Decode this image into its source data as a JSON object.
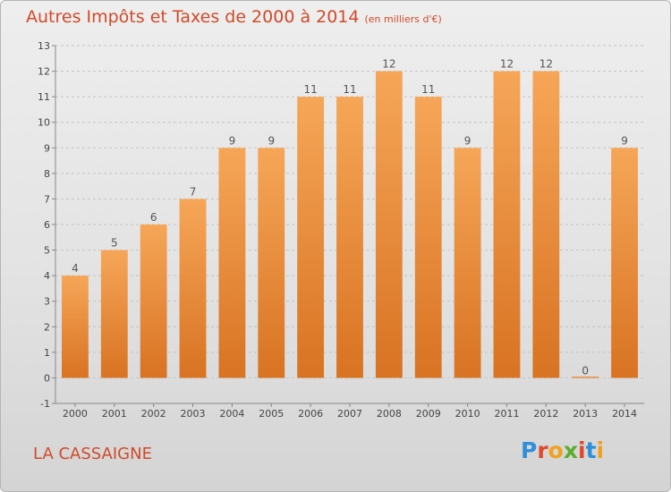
{
  "header": {
    "title": "Autres Impôts et Taxes de 2000 à 2014",
    "unit": "(en milliers d'€)"
  },
  "footer": {
    "place": "LA CASSAIGNE",
    "logo_letters": [
      "P",
      "r",
      "o",
      "x",
      "i",
      "t",
      "i"
    ],
    "logo_colors": [
      "#2f8fd8",
      "#e0482c",
      "#f0a21e",
      "#5aae2e",
      "#e0482c",
      "#2f8fd8",
      "#f0a21e"
    ]
  },
  "colors": {
    "bar_top": "#f6a658",
    "bar_bottom": "#d87322",
    "title": "#d04a2a"
  },
  "chart_data": {
    "type": "bar",
    "title": "Autres Impôts et Taxes de 2000 à 2014",
    "subtitle": "(en milliers d'€)",
    "xlabel": "",
    "ylabel": "",
    "categories": [
      "2000",
      "2001",
      "2002",
      "2003",
      "2004",
      "2005",
      "2006",
      "2007",
      "2008",
      "2009",
      "2010",
      "2011",
      "2012",
      "2013",
      "2014"
    ],
    "values": [
      4,
      5,
      6,
      7,
      9,
      9,
      11,
      11,
      12,
      11,
      9,
      12,
      12,
      0,
      9
    ],
    "ylim": [
      -1,
      13
    ],
    "yticks": [
      "-1",
      "0",
      "1",
      "2",
      "3",
      "4",
      "5",
      "6",
      "7",
      "8",
      "9",
      "10",
      "11",
      "12",
      "13"
    ],
    "grid": "horizontal dashed",
    "legend": "none"
  }
}
